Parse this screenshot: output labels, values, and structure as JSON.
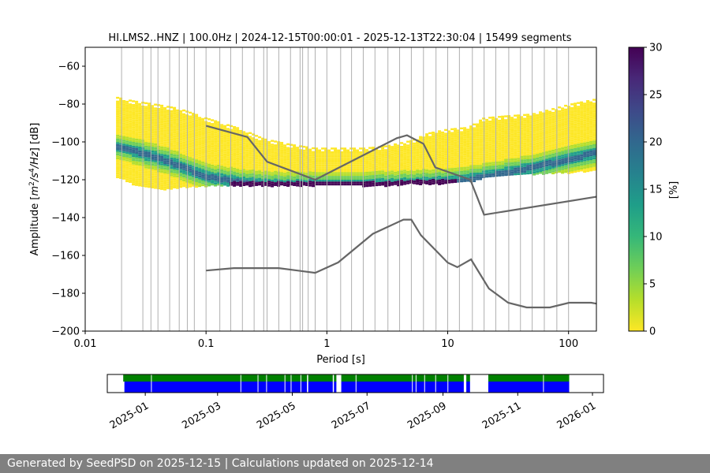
{
  "footer_text": "Generated by SeedPSD on 2025-12-15 | Calculations updated on 2025-12-14",
  "colors": {
    "nlnm_nhnm": "#666666",
    "grid": "#b0b0b0",
    "availability_data": "#0000ff",
    "availability_segments": "#008000",
    "viridis": [
      "#fde725",
      "#b5de2b",
      "#6ece58",
      "#35b779",
      "#1f9e89",
      "#26828e",
      "#31688e",
      "#3e4989",
      "#482878",
      "#440154"
    ]
  },
  "chart_data": [
    {
      "type": "heatmap",
      "title": "HI.LMS2..HNZ | 100.0Hz | 2024-12-15T00:00:01 - 2025-12-13T22:30:04 | 15499 segments",
      "xlabel": "Period [s]",
      "ylabel_parts": [
        "Amplitude [",
        "m",
        "2",
        "/",
        "s",
        "4",
        "/",
        "Hz",
        "] [dB]"
      ],
      "x_scale": "log",
      "xlim": [
        0.01,
        170
      ],
      "ylim": [
        -200,
        -50
      ],
      "x_ticks": [
        {
          "value": 0.01,
          "label": "0.01"
        },
        {
          "value": 0.1,
          "label": "0.1"
        },
        {
          "value": 1,
          "label": "1"
        },
        {
          "value": 10,
          "label": "10"
        },
        {
          "value": 100,
          "label": "100"
        }
      ],
      "y_ticks": [
        {
          "value": -60,
          "label": "−60"
        },
        {
          "value": -80,
          "label": "−80"
        },
        {
          "value": -100,
          "label": "−100"
        },
        {
          "value": -120,
          "label": "−120"
        },
        {
          "value": -140,
          "label": "−140"
        },
        {
          "value": -160,
          "label": "−160"
        },
        {
          "value": -180,
          "label": "−180"
        },
        {
          "value": -200,
          "label": "−200"
        }
      ],
      "grid": "vertical lines at period bins",
      "grid_periods": [
        0.02,
        0.03,
        0.035,
        0.04,
        0.05,
        0.06,
        0.07,
        0.08,
        0.1,
        0.13,
        0.16,
        0.2,
        0.25,
        0.3,
        0.32,
        0.4,
        0.5,
        0.6,
        0.63,
        0.7,
        0.8,
        1.0,
        1.3,
        1.6,
        2.0,
        2.5,
        3.2,
        4.0,
        5.0,
        6.3,
        8.0,
        10.0,
        12.5,
        16.0,
        20.0,
        25.0,
        32.0,
        40.0,
        50.0,
        63.0,
        80.0,
        100.0
      ],
      "density_profile": {
        "description": "PSD probability density by period: envelope and mode",
        "period": [
          0.018,
          0.025,
          0.04,
          0.06,
          0.1,
          0.2,
          0.3,
          0.5,
          0.8,
          1.0,
          2.0,
          3.0,
          5.0,
          7.0,
          10.0,
          15.0,
          20.0,
          30.0,
          50.0,
          100.0,
          170.0
        ],
        "upper_db": [
          -76,
          -78,
          -80,
          -82,
          -87,
          -93,
          -98,
          -101,
          -103,
          -103,
          -103,
          -102,
          -99,
          -95,
          -93,
          -92,
          -87,
          -86,
          -85,
          -80,
          -77
        ],
        "lower_db": [
          -118,
          -122,
          -125,
          -124,
          -123,
          -123,
          -123,
          -123,
          -123,
          -123,
          -123,
          -123,
          -122,
          -122,
          -122,
          -121,
          -119,
          -118,
          -117,
          -116,
          -115
        ],
        "mode_db": [
          -102,
          -104,
          -108,
          -112,
          -118,
          -121,
          -122,
          -122.5,
          -122.5,
          -122.5,
          -122.5,
          -122,
          -121.5,
          -121,
          -120.5,
          -119.5,
          -118,
          -116,
          -113,
          -109,
          -105
        ]
      },
      "series": [
        {
          "name": "",
          "type": "line",
          "x": [
            0.1,
            0.22,
            0.32,
            0.8,
            3.8,
            4.6,
            6.3,
            7.9,
            15.4,
            20,
            170
          ],
          "y": [
            -91.5,
            -97.4,
            -110.5,
            -120,
            -98,
            -96.5,
            -101,
            -113.5,
            -120,
            -138.5,
            -129
          ]
        },
        {
          "name": "",
          "type": "line",
          "x": [
            0.1,
            0.17,
            0.4,
            0.8,
            1.24,
            2.4,
            4.3,
            5.0,
            6.0,
            10,
            12,
            15.6,
            21.9,
            31.6,
            45,
            70,
            101,
            154,
            170
          ],
          "y": [
            -168,
            -166.7,
            -166.7,
            -169.2,
            -163.7,
            -148.6,
            -141.1,
            -141.1,
            -149.3,
            -163.8,
            -166.2,
            -162.1,
            -177.5,
            -185,
            -187.5,
            -187.5,
            -185,
            -185,
            -185.5
          ]
        }
      ]
    },
    {
      "type": "colorbar",
      "label": "[%]",
      "range": [
        0,
        30
      ],
      "ticks": [
        0,
        5,
        10,
        15,
        20,
        25,
        30
      ]
    },
    {
      "type": "timeline",
      "description": "Data availability over time",
      "xlim": [
        "2024-12-01",
        "2026-01-10"
      ],
      "x_ticks": [
        "2025-01",
        "2025-03",
        "2025-05",
        "2025-07",
        "2025-09",
        "2025-11",
        "2026-01"
      ],
      "data_intervals": [
        [
          "2024-12-15",
          "2025-05-13"
        ],
        [
          "2025-05-14",
          "2025-06-03"
        ],
        [
          "2025-06-04",
          "2025-06-06"
        ],
        [
          "2025-06-10",
          "2025-09-18"
        ],
        [
          "2025-09-20",
          "2025-09-23"
        ],
        [
          "2025-10-08",
          "2025-12-13"
        ]
      ],
      "segment_intervals": [
        [
          "2024-12-14",
          "2025-05-13"
        ],
        [
          "2025-05-14",
          "2025-06-03"
        ],
        [
          "2025-06-04",
          "2025-06-06"
        ],
        [
          "2025-06-10",
          "2025-09-18"
        ],
        [
          "2025-09-20",
          "2025-09-23"
        ],
        [
          "2025-10-08",
          "2025-12-13"
        ]
      ],
      "gap_marks": [
        "2025-01-06",
        "2025-03-20",
        "2025-04-03",
        "2025-04-10",
        "2025-04-25",
        "2025-04-30",
        "2025-05-08",
        "2025-06-22",
        "2025-08-07",
        "2025-08-10",
        "2025-08-17",
        "2025-08-26",
        "2025-09-05",
        "2025-11-22"
      ]
    }
  ]
}
